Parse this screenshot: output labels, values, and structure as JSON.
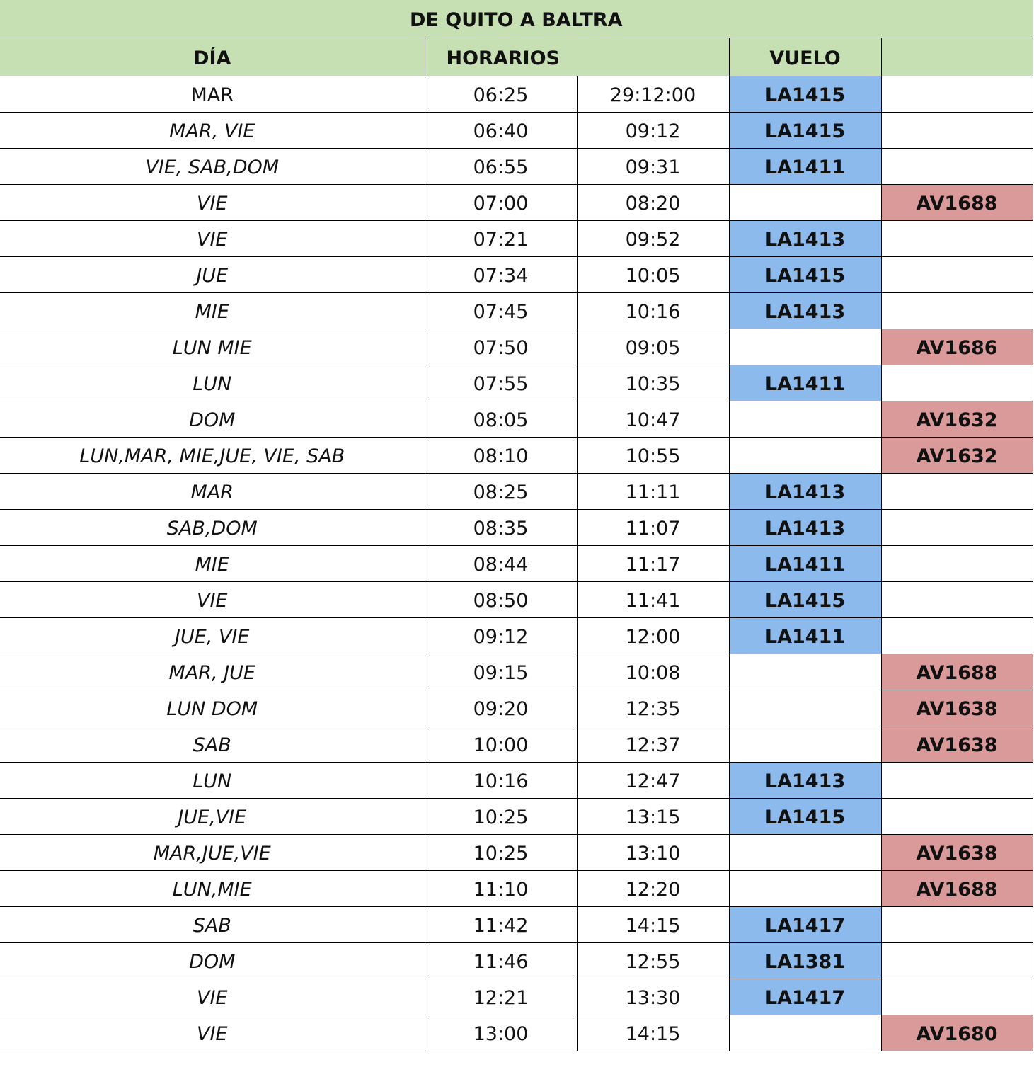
{
  "title": "DE QUITO A BALTRA",
  "headers": {
    "day": "DÍA",
    "times": "HORARIOS",
    "flight": "VUELO",
    "extra": ""
  },
  "colors": {
    "header": "#c6e0b4",
    "latam": "#8dbaed",
    "avianca": "#da9a9a"
  },
  "rows": [
    {
      "day": "MAR",
      "dep": "06:25",
      "arr": "29:12:00",
      "la": "LA1415",
      "av": ""
    },
    {
      "day": "MAR, VIE",
      "dep": "06:40",
      "arr": "09:12",
      "la": "LA1415",
      "av": ""
    },
    {
      "day": "VIE, SAB,DOM",
      "dep": "06:55",
      "arr": "09:31",
      "la": "LA1411",
      "av": ""
    },
    {
      "day": "VIE",
      "dep": "07:00",
      "arr": "08:20",
      "la": "",
      "av": "AV1688"
    },
    {
      "day": "VIE",
      "dep": "07:21",
      "arr": "09:52",
      "la": "LA1413",
      "av": ""
    },
    {
      "day": "JUE",
      "dep": "07:34",
      "arr": "10:05",
      "la": "LA1415",
      "av": ""
    },
    {
      "day": "MIE",
      "dep": "07:45",
      "arr": "10:16",
      "la": "LA1413",
      "av": ""
    },
    {
      "day": "LUN MIE",
      "dep": "07:50",
      "arr": "09:05",
      "la": "",
      "av": "AV1686"
    },
    {
      "day": "LUN",
      "dep": "07:55",
      "arr": "10:35",
      "la": "LA1411",
      "av": ""
    },
    {
      "day": "DOM",
      "dep": "08:05",
      "arr": "10:47",
      "la": "",
      "av": "AV1632"
    },
    {
      "day": "LUN,MAR, MIE,JUE, VIE, SAB",
      "dep": "08:10",
      "arr": "10:55",
      "la": "",
      "av": "AV1632"
    },
    {
      "day": "MAR",
      "dep": "08:25",
      "arr": "11:11",
      "la": "LA1413",
      "av": ""
    },
    {
      "day": "SAB,DOM",
      "dep": "08:35",
      "arr": "11:07",
      "la": "LA1413",
      "av": ""
    },
    {
      "day": "MIE",
      "dep": "08:44",
      "arr": "11:17",
      "la": "LA1411",
      "av": ""
    },
    {
      "day": "VIE",
      "dep": "08:50",
      "arr": "11:41",
      "la": "LA1415",
      "av": ""
    },
    {
      "day": "JUE, VIE",
      "dep": "09:12",
      "arr": "12:00",
      "la": "LA1411",
      "av": ""
    },
    {
      "day": "MAR, JUE",
      "dep": "09:15",
      "arr": "10:08",
      "la": "",
      "av": "AV1688"
    },
    {
      "day": "LUN DOM",
      "dep": "09:20",
      "arr": "12:35",
      "la": "",
      "av": "AV1638"
    },
    {
      "day": "SAB",
      "dep": "10:00",
      "arr": "12:37",
      "la": "",
      "av": "AV1638"
    },
    {
      "day": "LUN",
      "dep": "10:16",
      "arr": "12:47",
      "la": "LA1413",
      "av": ""
    },
    {
      "day": "JUE,VIE",
      "dep": "10:25",
      "arr": "13:15",
      "la": "LA1415",
      "av": ""
    },
    {
      "day": "MAR,JUE,VIE",
      "dep": "10:25",
      "arr": "13:10",
      "la": "",
      "av": "AV1638"
    },
    {
      "day": "LUN,MIE",
      "dep": "11:10",
      "arr": "12:20",
      "la": "",
      "av": "AV1688"
    },
    {
      "day": "SAB",
      "dep": "11:42",
      "arr": "14:15",
      "la": "LA1417",
      "av": ""
    },
    {
      "day": "DOM",
      "dep": "11:46",
      "arr": "12:55",
      "la": "LA1381",
      "av": ""
    },
    {
      "day": "VIE",
      "dep": "12:21",
      "arr": "13:30",
      "la": "LA1417",
      "av": ""
    },
    {
      "day": "VIE",
      "dep": "13:00",
      "arr": "14:15",
      "la": "",
      "av": "AV1680"
    }
  ]
}
